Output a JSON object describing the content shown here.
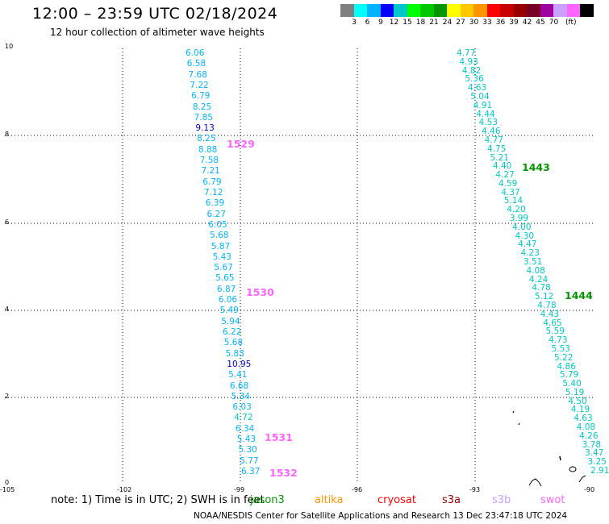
{
  "header": {
    "title": "12:00 – 23:59 UTC 02/18/2024",
    "subtitle": "12 hour collection of altimeter wave heights"
  },
  "legend": {
    "colors": [
      "#808080",
      "#00ffff",
      "#00b4ff",
      "#0000ff",
      "#00c8c8",
      "#00ff00",
      "#00c800",
      "#009600",
      "#ffff00",
      "#ffc800",
      "#ff9600",
      "#ff0000",
      "#c80000",
      "#960000",
      "#780028",
      "#a000a0",
      "#c8a0ff",
      "#ff64ff",
      "#000000"
    ],
    "labels": [
      "3",
      "6",
      "9",
      "12",
      "15",
      "18",
      "21",
      "24",
      "27",
      "30",
      "33",
      "36",
      "39",
      "42",
      "45",
      "70"
    ],
    "unit": "(ft)"
  },
  "axes": {
    "y_ticks": [
      "10",
      "8",
      "6",
      "4",
      "2",
      "0"
    ],
    "x_ticks": [
      "-105",
      "-102",
      "-99",
      "-96",
      "-93",
      "-90"
    ]
  },
  "tracks": {
    "left": [
      {
        "v": "6.06",
        "c": "#00b4ff"
      },
      {
        "v": "6.58",
        "c": "#00b4ff"
      },
      {
        "v": "7.68",
        "c": "#00b4ff"
      },
      {
        "v": "7.22",
        "c": "#00b4ff"
      },
      {
        "v": "6.79",
        "c": "#00b4ff"
      },
      {
        "v": "8.25",
        "c": "#00b4ff"
      },
      {
        "v": "7.85",
        "c": "#00b4ff"
      },
      {
        "v": "9.13",
        "c": "#0000c0"
      },
      {
        "v": "8.25",
        "c": "#00b4ff"
      },
      {
        "v": "8.88",
        "c": "#00b4ff"
      },
      {
        "v": "7.58",
        "c": "#00b4ff"
      },
      {
        "v": "7.21",
        "c": "#00b4ff"
      },
      {
        "v": "6.79",
        "c": "#00b4ff"
      },
      {
        "v": "7.12",
        "c": "#00b4ff"
      },
      {
        "v": "6.39",
        "c": "#00b4ff"
      },
      {
        "v": "6.27",
        "c": "#00b4ff"
      },
      {
        "v": "6.05",
        "c": "#00b4ff"
      },
      {
        "v": "5.68",
        "c": "#00b4ff"
      },
      {
        "v": "5.87",
        "c": "#00b4ff"
      },
      {
        "v": "5.43",
        "c": "#00b4ff"
      },
      {
        "v": "5.67",
        "c": "#00b4ff"
      },
      {
        "v": "5.65",
        "c": "#00b4ff"
      },
      {
        "v": "6.87",
        "c": "#00b4ff"
      },
      {
        "v": "6.06",
        "c": "#00b4ff"
      },
      {
        "v": "5.49",
        "c": "#00b4ff"
      },
      {
        "v": "5.94",
        "c": "#00b4ff"
      },
      {
        "v": "6.22",
        "c": "#00b4ff"
      },
      {
        "v": "5.68",
        "c": "#00b4ff"
      },
      {
        "v": "5.83",
        "c": "#00b4ff"
      },
      {
        "v": "10.95",
        "c": "#0000c0"
      },
      {
        "v": "5.41",
        "c": "#00b4ff"
      },
      {
        "v": "6.68",
        "c": "#00b4ff"
      },
      {
        "v": "5.34",
        "c": "#00b4ff"
      },
      {
        "v": "6.03",
        "c": "#00b4ff"
      },
      {
        "v": "4.72",
        "c": "#00c8c8"
      },
      {
        "v": "6.34",
        "c": "#00b4ff"
      },
      {
        "v": "5.43",
        "c": "#00b4ff"
      },
      {
        "v": "5.30",
        "c": "#00b4ff"
      },
      {
        "v": "5.77",
        "c": "#00b4ff"
      },
      {
        "v": "6.37",
        "c": "#00b4ff"
      }
    ],
    "right": [
      {
        "v": "4.77"
      },
      {
        "v": "4.93"
      },
      {
        "v": "4.82"
      },
      {
        "v": "5.36"
      },
      {
        "v": "4.63"
      },
      {
        "v": "5.04"
      },
      {
        "v": "4.91"
      },
      {
        "v": "4.44"
      },
      {
        "v": "4.53"
      },
      {
        "v": "4.46"
      },
      {
        "v": "4.77"
      },
      {
        "v": "4.75"
      },
      {
        "v": "5.21"
      },
      {
        "v": "4.40"
      },
      {
        "v": "4.27"
      },
      {
        "v": "4.59"
      },
      {
        "v": "4.37"
      },
      {
        "v": "5.14"
      },
      {
        "v": "4.20"
      },
      {
        "v": "3.99"
      },
      {
        "v": "4.00"
      },
      {
        "v": "4.30"
      },
      {
        "v": "4.47"
      },
      {
        "v": "4.23"
      },
      {
        "v": "3.51"
      },
      {
        "v": "4.08"
      },
      {
        "v": "4.24"
      },
      {
        "v": "4.78"
      },
      {
        "v": "5.12"
      },
      {
        "v": "4.78"
      },
      {
        "v": "4.43"
      },
      {
        "v": "4.65"
      },
      {
        "v": "5.59"
      },
      {
        "v": "4.73"
      },
      {
        "v": "5.53"
      },
      {
        "v": "5.22"
      },
      {
        "v": "4.86"
      },
      {
        "v": "5.79"
      },
      {
        "v": "5.40"
      },
      {
        "v": "5.19"
      },
      {
        "v": "4.50"
      },
      {
        "v": "4.19"
      },
      {
        "v": "4.63"
      },
      {
        "v": "4.08"
      },
      {
        "v": "4.26"
      },
      {
        "v": "3.78"
      },
      {
        "v": "3.47"
      },
      {
        "v": "3.25"
      },
      {
        "v": "2.91"
      }
    ],
    "right_color": "#00c8c8"
  },
  "passes": [
    {
      "label": "1529",
      "color": "#ff64ff"
    },
    {
      "label": "1530",
      "color": "#ff64ff"
    },
    {
      "label": "1531",
      "color": "#ff64ff"
    },
    {
      "label": "1532",
      "color": "#ff64ff"
    },
    {
      "label": "1443",
      "color": "#009600"
    },
    {
      "label": "1444",
      "color": "#009600"
    }
  ],
  "footer": {
    "note": "note:  1) Time is in UTC;  2) SWH is in feet",
    "satellites": [
      {
        "name": "jason3",
        "color": "#009600"
      },
      {
        "name": "altika",
        "color": "#ff9600"
      },
      {
        "name": "cryosat",
        "color": "#ff0000"
      },
      {
        "name": "s3a",
        "color": "#960000"
      },
      {
        "name": "s3b",
        "color": "#c8a0ff"
      },
      {
        "name": "swot",
        "color": "#ff64ff"
      }
    ],
    "credit": "NOAA/NESDIS Center for Satellite Applications and Research    13 Dec 23:47:18 UTC 2024"
  }
}
